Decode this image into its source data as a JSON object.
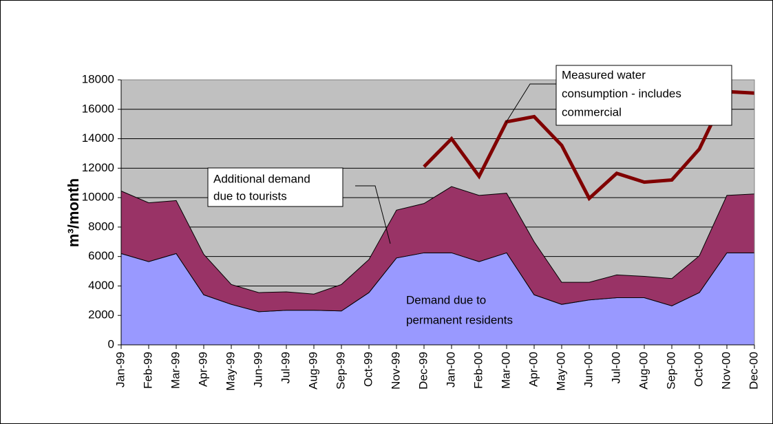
{
  "chart_data": {
    "type": "stacked-area-line",
    "y_label": "m³/month",
    "categories": [
      "Jan-99",
      "Feb-99",
      "Mar-99",
      "Apr-99",
      "May-99",
      "Jun-99",
      "Jul-99",
      "Aug-99",
      "Sep-99",
      "Oct-99",
      "Nov-99",
      "Dec-99",
      "Jan-00",
      "Feb-00",
      "Mar-00",
      "Apr-00",
      "May-00",
      "Jun-00",
      "Jul-00",
      "Aug-00",
      "Sep-00",
      "Oct-00",
      "Nov-00",
      "Dec-00"
    ],
    "series": [
      {
        "kind": "area",
        "color": "#9999ff",
        "values": [
          6200,
          5650,
          6200,
          3400,
          2750,
          2250,
          2350,
          2350,
          2300,
          3550,
          5900,
          6250,
          6250,
          5650,
          6250,
          3400,
          2750,
          3050,
          3200,
          3200,
          2650,
          3550,
          6250,
          6250
        ]
      },
      {
        "kind": "area",
        "color": "#993366",
        "values": [
          4250,
          4000,
          3600,
          2750,
          1350,
          1300,
          1250,
          1100,
          1800,
          2250,
          3250,
          3350,
          4500,
          4500,
          4050,
          3600,
          1500,
          1200,
          1550,
          1450,
          1850,
          2500,
          3900,
          4000
        ]
      },
      {
        "kind": "line",
        "color": "#800000",
        "values": [
          null,
          null,
          null,
          null,
          null,
          null,
          null,
          null,
          null,
          null,
          null,
          12100,
          14000,
          11450,
          15150,
          15500,
          13550,
          9950,
          11650,
          11050,
          11200,
          13300,
          17200,
          17100
        ]
      }
    ],
    "annotations": [
      {
        "lines": [
          "Measured water",
          "consumption - includes",
          "commercial"
        ]
      },
      {
        "lines": [
          "Additional demand",
          "due to tourists"
        ]
      },
      {
        "lines": [
          "Demand due to",
          "permanent residents"
        ]
      }
    ],
    "ylim": [
      0,
      18000
    ],
    "yticks": [
      0,
      2000,
      4000,
      6000,
      8000,
      10000,
      12000,
      14000,
      16000,
      18000
    ],
    "grid": true,
    "plot_background": "#c0c0c0"
  }
}
